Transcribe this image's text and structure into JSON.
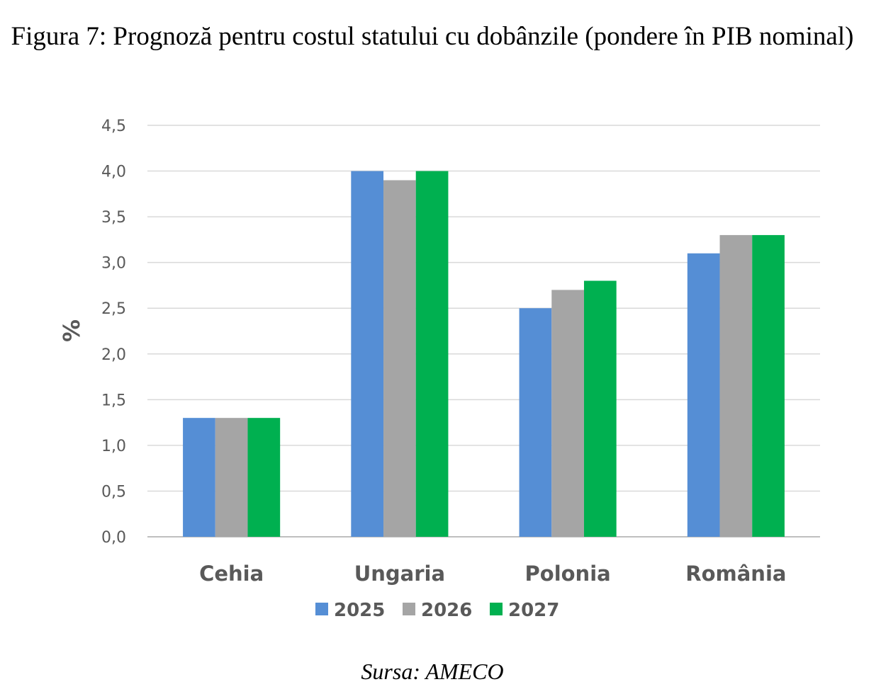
{
  "caption": "Figura 7: Prognoză pentru costul statului cu dobânzile (pondere în PIB nominal)",
  "source": "Sursa: AMECO",
  "chart_data": {
    "type": "bar",
    "title": "",
    "xlabel": "",
    "ylabel": "%",
    "ylim": [
      0,
      4.5
    ],
    "yticks": [
      "0,0",
      "0,5",
      "1,0",
      "1,5",
      "2,0",
      "2,5",
      "3,0",
      "3,5",
      "4,0",
      "4,5"
    ],
    "grid": true,
    "legend": "bottom",
    "categories": [
      "Cehia",
      "Ungaria",
      "Polonia",
      "România"
    ],
    "series": [
      {
        "name": "2025",
        "color": "#558ED5",
        "values": [
          1.3,
          4.0,
          2.5,
          3.1
        ]
      },
      {
        "name": "2026",
        "color": "#A5A5A5",
        "values": [
          1.3,
          3.9,
          2.7,
          3.3
        ]
      },
      {
        "name": "2027",
        "color": "#00B050",
        "values": [
          1.3,
          4.0,
          2.8,
          3.3
        ]
      }
    ]
  }
}
